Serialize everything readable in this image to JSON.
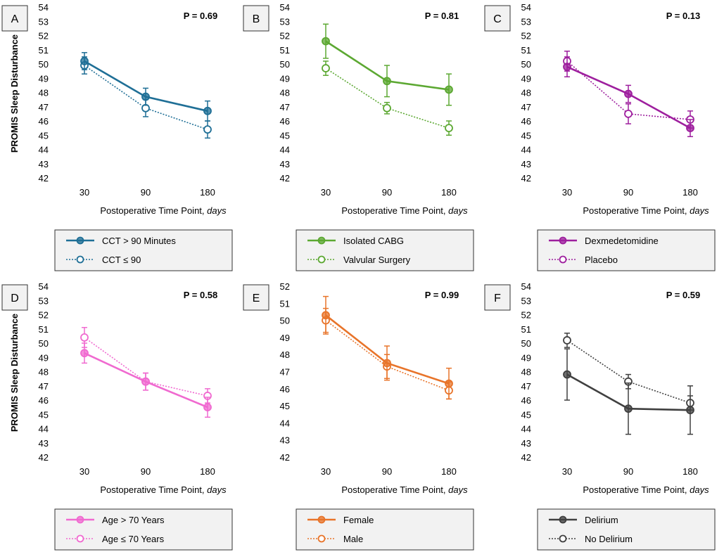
{
  "figure": {
    "ylabel": "PROMIS Sleep Disturbance",
    "xlabel_prefix": "Postoperative Time Point, ",
    "xlabel_unit": "days"
  },
  "chart_data": [
    {
      "panel": "A",
      "type": "line",
      "p_value": "P = 0.69",
      "x": [
        "30",
        "90",
        "180"
      ],
      "ylim": [
        42,
        54
      ],
      "yticks": [
        "42",
        "43",
        "44",
        "45",
        "46",
        "47",
        "48",
        "49",
        "50",
        "51",
        "52",
        "53",
        "54"
      ],
      "color": "#1f6f96",
      "series": [
        {
          "name": "CCT > 90 Minutes",
          "style": "solid",
          "values": [
            50.2,
            47.7,
            46.7
          ],
          "errors": [
            0.6,
            0.6,
            0.7
          ]
        },
        {
          "name": "CCT ≤ 90",
          "style": "dotted",
          "values": [
            49.9,
            46.9,
            45.4
          ],
          "errors": [
            0.6,
            0.6,
            0.6
          ]
        }
      ]
    },
    {
      "panel": "B",
      "type": "line",
      "p_value": "P = 0.81",
      "x": [
        "30",
        "90",
        "180"
      ],
      "ylim": [
        42,
        54
      ],
      "yticks": [
        "42",
        "43",
        "44",
        "45",
        "46",
        "47",
        "48",
        "49",
        "50",
        "51",
        "52",
        "53",
        "54"
      ],
      "color": "#5ca832",
      "series": [
        {
          "name": "Isolated CABG",
          "style": "solid",
          "values": [
            51.6,
            48.8,
            48.2
          ],
          "errors": [
            1.2,
            1.1,
            1.1
          ]
        },
        {
          "name": "Valvular Surgery",
          "style": "dotted",
          "values": [
            49.7,
            46.9,
            45.5
          ],
          "errors": [
            0.5,
            0.4,
            0.5
          ]
        }
      ]
    },
    {
      "panel": "C",
      "type": "line",
      "p_value": "P = 0.13",
      "x": [
        "30",
        "90",
        "180"
      ],
      "ylim": [
        42,
        54
      ],
      "yticks": [
        "42",
        "43",
        "44",
        "45",
        "46",
        "47",
        "48",
        "49",
        "50",
        "51",
        "52",
        "53",
        "54"
      ],
      "color": "#9e1f9e",
      "series": [
        {
          "name": "Dexmedetomidine",
          "style": "solid",
          "values": [
            49.8,
            47.9,
            45.5
          ],
          "errors": [
            0.7,
            0.6,
            0.6
          ]
        },
        {
          "name": "Placebo",
          "style": "dotted",
          "values": [
            50.2,
            46.5,
            46.1
          ],
          "errors": [
            0.7,
            0.7,
            0.6
          ]
        }
      ]
    },
    {
      "panel": "D",
      "type": "line",
      "p_value": "P = 0.58",
      "x": [
        "30",
        "90",
        "180"
      ],
      "ylim": [
        42,
        54
      ],
      "yticks": [
        "42",
        "43",
        "44",
        "45",
        "46",
        "47",
        "48",
        "49",
        "50",
        "51",
        "52",
        "53",
        "54"
      ],
      "color": "#f06ad0",
      "series": [
        {
          "name": "Age > 70 Years",
          "style": "solid",
          "values": [
            49.3,
            47.3,
            45.5
          ],
          "errors": [
            0.7,
            0.6,
            0.7
          ]
        },
        {
          "name": "Age ≤ 70 Years",
          "style": "dotted",
          "values": [
            50.4,
            47.3,
            46.3
          ],
          "errors": [
            0.7,
            0.6,
            0.5
          ]
        }
      ]
    },
    {
      "panel": "E",
      "type": "line",
      "p_value": "P = 0.99",
      "x": [
        "30",
        "90",
        "180"
      ],
      "ylim": [
        42,
        52
      ],
      "yticks": [
        "42",
        "43",
        "44",
        "45",
        "46",
        "47",
        "48",
        "49",
        "50",
        "51",
        "52"
      ],
      "color": "#e8742a",
      "series": [
        {
          "name": "Female",
          "style": "solid",
          "values": [
            50.3,
            47.5,
            46.3
          ],
          "errors": [
            1.1,
            1.0,
            0.9
          ]
        },
        {
          "name": "Male",
          "style": "dotted",
          "values": [
            50.0,
            47.3,
            45.9
          ],
          "errors": [
            0.7,
            0.7,
            0.5
          ]
        }
      ]
    },
    {
      "panel": "F",
      "type": "line",
      "p_value": "P = 0.59",
      "x": [
        "30",
        "90",
        "180"
      ],
      "ylim": [
        42,
        54
      ],
      "yticks": [
        "42",
        "43",
        "44",
        "45",
        "46",
        "47",
        "48",
        "49",
        "50",
        "51",
        "52",
        "53",
        "54"
      ],
      "color": "#404040",
      "series": [
        {
          "name": "Delirium",
          "style": "solid",
          "values": [
            47.8,
            45.4,
            45.3
          ],
          "errors": [
            1.8,
            1.8,
            1.7
          ]
        },
        {
          "name": "No Delirium",
          "style": "dotted",
          "values": [
            50.2,
            47.3,
            45.8
          ],
          "errors": [
            0.5,
            0.5,
            0.5
          ]
        }
      ]
    }
  ]
}
